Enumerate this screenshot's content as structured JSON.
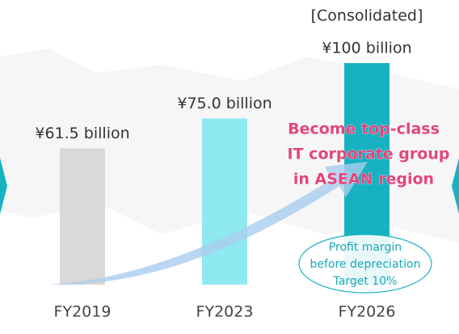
{
  "chart_data": {
    "type": "bar",
    "categories": [
      "FY2019",
      "FY2023",
      "FY2026"
    ],
    "values": [
      61.5,
      75.0,
      100
    ],
    "value_labels": [
      "¥61.5 billion",
      "¥75.0 billion",
      "¥100 billion"
    ],
    "colors": [
      "#d9d9d9",
      "#8fe9f1",
      "#17b2c2"
    ],
    "annotations": {
      "bar_note": "[Consolidated]",
      "headline": [
        "Become top-class",
        "IT corporate group",
        "in ASEAN region"
      ],
      "target": [
        "Profit margin",
        "before depreciation",
        "Target 10%"
      ]
    }
  }
}
